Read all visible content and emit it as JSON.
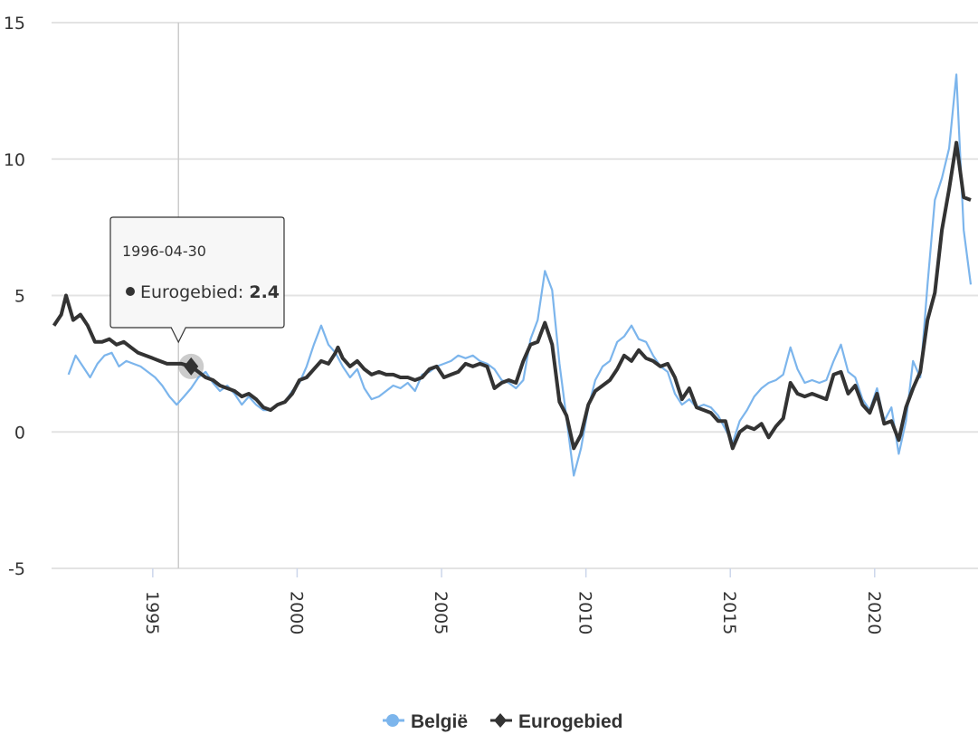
{
  "chart_data": {
    "type": "line",
    "title": "",
    "xlabel": "",
    "ylabel": "",
    "xlim": [
      "1991-07-01",
      "2023-07-31"
    ],
    "ylim": [
      -5,
      15
    ],
    "y_ticks": [
      "-5",
      "0",
      "5",
      "10",
      "15"
    ],
    "x_ticks": [
      "1995",
      "2000",
      "2005",
      "2010",
      "2015",
      "2020"
    ],
    "grid": true,
    "legend": {
      "placement": "bottom-center"
    },
    "series": [
      {
        "name": "België",
        "color": "#7cb5ec",
        "points": [
          [
            "1992-01-31",
            2.1
          ],
          [
            "1992-04-30",
            2.8
          ],
          [
            "1992-07-31",
            2.4
          ],
          [
            "1992-10-31",
            2.0
          ],
          [
            "1993-01-31",
            2.5
          ],
          [
            "1993-04-30",
            2.8
          ],
          [
            "1993-07-31",
            2.9
          ],
          [
            "1993-10-31",
            2.4
          ],
          [
            "1994-01-31",
            2.6
          ],
          [
            "1994-04-30",
            2.5
          ],
          [
            "1994-07-31",
            2.4
          ],
          [
            "1994-10-31",
            2.2
          ],
          [
            "1995-01-31",
            2.0
          ],
          [
            "1995-04-30",
            1.7
          ],
          [
            "1995-07-31",
            1.3
          ],
          [
            "1995-10-31",
            1.0
          ],
          [
            "1996-01-31",
            1.3
          ],
          [
            "1996-04-30",
            1.6
          ],
          [
            "1996-07-31",
            2.0
          ],
          [
            "1996-10-31",
            2.2
          ],
          [
            "1997-01-31",
            1.8
          ],
          [
            "1997-04-30",
            1.5
          ],
          [
            "1997-07-31",
            1.7
          ],
          [
            "1997-10-31",
            1.4
          ],
          [
            "1998-01-31",
            1.0
          ],
          [
            "1998-04-30",
            1.3
          ],
          [
            "1998-07-31",
            1.0
          ],
          [
            "1998-10-31",
            0.8
          ],
          [
            "1999-01-31",
            0.8
          ],
          [
            "1999-04-30",
            1.0
          ],
          [
            "1999-07-31",
            1.1
          ],
          [
            "1999-10-31",
            1.5
          ],
          [
            "2000-01-31",
            1.8
          ],
          [
            "2000-04-30",
            2.4
          ],
          [
            "2000-07-31",
            3.2
          ],
          [
            "2000-10-31",
            3.9
          ],
          [
            "2001-01-31",
            3.2
          ],
          [
            "2001-04-30",
            2.9
          ],
          [
            "2001-07-31",
            2.4
          ],
          [
            "2001-10-31",
            2.0
          ],
          [
            "2002-01-31",
            2.3
          ],
          [
            "2002-04-30",
            1.6
          ],
          [
            "2002-07-31",
            1.2
          ],
          [
            "2002-10-31",
            1.3
          ],
          [
            "2003-01-31",
            1.5
          ],
          [
            "2003-04-30",
            1.7
          ],
          [
            "2003-07-31",
            1.6
          ],
          [
            "2003-10-31",
            1.8
          ],
          [
            "2004-01-31",
            1.5
          ],
          [
            "2004-04-30",
            2.1
          ],
          [
            "2004-07-31",
            2.2
          ],
          [
            "2004-10-31",
            2.4
          ],
          [
            "2005-01-31",
            2.5
          ],
          [
            "2005-04-30",
            2.6
          ],
          [
            "2005-07-31",
            2.8
          ],
          [
            "2005-10-31",
            2.7
          ],
          [
            "2006-01-31",
            2.8
          ],
          [
            "2006-04-30",
            2.6
          ],
          [
            "2006-07-31",
            2.5
          ],
          [
            "2006-10-31",
            2.3
          ],
          [
            "2007-01-31",
            1.9
          ],
          [
            "2007-04-30",
            1.8
          ],
          [
            "2007-07-31",
            1.6
          ],
          [
            "2007-10-31",
            1.9
          ],
          [
            "2008-01-31",
            3.4
          ],
          [
            "2008-04-30",
            4.1
          ],
          [
            "2008-07-31",
            5.9
          ],
          [
            "2008-10-31",
            5.2
          ],
          [
            "2009-01-31",
            2.5
          ],
          [
            "2009-04-30",
            0.5
          ],
          [
            "2009-07-31",
            -1.6
          ],
          [
            "2009-10-31",
            -0.6
          ],
          [
            "2010-01-31",
            0.9
          ],
          [
            "2010-04-30",
            1.9
          ],
          [
            "2010-07-31",
            2.4
          ],
          [
            "2010-10-31",
            2.6
          ],
          [
            "2011-01-31",
            3.3
          ],
          [
            "2011-04-30",
            3.5
          ],
          [
            "2011-07-31",
            3.9
          ],
          [
            "2011-10-31",
            3.4
          ],
          [
            "2012-01-31",
            3.3
          ],
          [
            "2012-04-30",
            2.8
          ],
          [
            "2012-07-31",
            2.4
          ],
          [
            "2012-10-31",
            2.2
          ],
          [
            "2013-01-31",
            1.4
          ],
          [
            "2013-04-30",
            1.0
          ],
          [
            "2013-07-31",
            1.2
          ],
          [
            "2013-10-31",
            0.9
          ],
          [
            "2014-01-31",
            1.0
          ],
          [
            "2014-04-30",
            0.9
          ],
          [
            "2014-07-31",
            0.6
          ],
          [
            "2014-10-31",
            0.1
          ],
          [
            "2015-01-31",
            -0.4
          ],
          [
            "2015-04-30",
            0.4
          ],
          [
            "2015-07-31",
            0.8
          ],
          [
            "2015-10-31",
            1.3
          ],
          [
            "2016-01-31",
            1.6
          ],
          [
            "2016-04-30",
            1.8
          ],
          [
            "2016-07-31",
            1.9
          ],
          [
            "2016-10-31",
            2.1
          ],
          [
            "2017-01-31",
            3.1
          ],
          [
            "2017-04-30",
            2.3
          ],
          [
            "2017-07-31",
            1.8
          ],
          [
            "2017-10-31",
            1.9
          ],
          [
            "2018-01-31",
            1.8
          ],
          [
            "2018-04-30",
            1.9
          ],
          [
            "2018-07-31",
            2.6
          ],
          [
            "2018-10-31",
            3.2
          ],
          [
            "2019-01-31",
            2.2
          ],
          [
            "2019-04-30",
            2.0
          ],
          [
            "2019-07-31",
            1.2
          ],
          [
            "2019-10-31",
            0.8
          ],
          [
            "2020-01-31",
            1.6
          ],
          [
            "2020-04-30",
            0.4
          ],
          [
            "2020-07-31",
            0.9
          ],
          [
            "2020-10-31",
            -0.8
          ],
          [
            "2021-01-31",
            0.4
          ],
          [
            "2021-04-30",
            2.6
          ],
          [
            "2021-07-31",
            2.0
          ],
          [
            "2021-10-31",
            5.4
          ],
          [
            "2022-01-31",
            8.5
          ],
          [
            "2022-04-30",
            9.3
          ],
          [
            "2022-07-31",
            10.4
          ],
          [
            "2022-10-31",
            13.1
          ],
          [
            "2023-01-31",
            7.4
          ],
          [
            "2023-04-30",
            5.4
          ]
        ]
      },
      {
        "name": "Eurogebied",
        "color": "#333333",
        "points": [
          [
            "1991-07-31",
            3.9
          ],
          [
            "1991-10-31",
            4.3
          ],
          [
            "1991-12-31",
            5.0
          ],
          [
            "1992-03-31",
            4.1
          ],
          [
            "1992-06-30",
            4.3
          ],
          [
            "1992-09-30",
            3.9
          ],
          [
            "1992-12-31",
            3.3
          ],
          [
            "1993-03-31",
            3.3
          ],
          [
            "1993-06-30",
            3.4
          ],
          [
            "1993-09-30",
            3.2
          ],
          [
            "1993-12-31",
            3.3
          ],
          [
            "1994-03-31",
            3.1
          ],
          [
            "1994-06-30",
            2.9
          ],
          [
            "1994-09-30",
            2.8
          ],
          [
            "1994-12-31",
            2.7
          ],
          [
            "1995-03-31",
            2.6
          ],
          [
            "1995-06-30",
            2.5
          ],
          [
            "1995-09-30",
            2.5
          ],
          [
            "1995-12-31",
            2.5
          ],
          [
            "1996-04-30",
            2.4
          ],
          [
            "1996-07-31",
            2.2
          ],
          [
            "1996-10-31",
            2.0
          ],
          [
            "1997-01-31",
            1.9
          ],
          [
            "1997-04-30",
            1.7
          ],
          [
            "1997-07-31",
            1.6
          ],
          [
            "1997-10-31",
            1.5
          ],
          [
            "1998-01-31",
            1.3
          ],
          [
            "1998-04-30",
            1.4
          ],
          [
            "1998-07-31",
            1.2
          ],
          [
            "1998-10-31",
            0.9
          ],
          [
            "1999-01-31",
            0.8
          ],
          [
            "1999-04-30",
            1.0
          ],
          [
            "1999-07-31",
            1.1
          ],
          [
            "1999-10-31",
            1.4
          ],
          [
            "2000-01-31",
            1.9
          ],
          [
            "2000-04-30",
            2.0
          ],
          [
            "2000-07-31",
            2.3
          ],
          [
            "2000-10-31",
            2.6
          ],
          [
            "2001-01-31",
            2.5
          ],
          [
            "2001-04-30",
            2.9
          ],
          [
            "2001-05-31",
            3.1
          ],
          [
            "2001-07-31",
            2.7
          ],
          [
            "2001-10-31",
            2.4
          ],
          [
            "2002-01-31",
            2.6
          ],
          [
            "2002-04-30",
            2.3
          ],
          [
            "2002-07-31",
            2.1
          ],
          [
            "2002-10-31",
            2.2
          ],
          [
            "2003-01-31",
            2.1
          ],
          [
            "2003-04-30",
            2.1
          ],
          [
            "2003-07-31",
            2.0
          ],
          [
            "2003-10-31",
            2.0
          ],
          [
            "2004-01-31",
            1.9
          ],
          [
            "2004-04-30",
            2.0
          ],
          [
            "2004-07-31",
            2.3
          ],
          [
            "2004-10-31",
            2.4
          ],
          [
            "2005-01-31",
            2.0
          ],
          [
            "2005-04-30",
            2.1
          ],
          [
            "2005-07-31",
            2.2
          ],
          [
            "2005-10-31",
            2.5
          ],
          [
            "2006-01-31",
            2.4
          ],
          [
            "2006-04-30",
            2.5
          ],
          [
            "2006-07-31",
            2.4
          ],
          [
            "2006-10-31",
            1.6
          ],
          [
            "2007-01-31",
            1.8
          ],
          [
            "2007-04-30",
            1.9
          ],
          [
            "2007-07-31",
            1.8
          ],
          [
            "2007-10-31",
            2.6
          ],
          [
            "2008-01-31",
            3.2
          ],
          [
            "2008-04-30",
            3.3
          ],
          [
            "2008-07-31",
            4.0
          ],
          [
            "2008-10-31",
            3.2
          ],
          [
            "2009-01-31",
            1.1
          ],
          [
            "2009-04-30",
            0.6
          ],
          [
            "2009-07-31",
            -0.6
          ],
          [
            "2009-10-31",
            -0.1
          ],
          [
            "2010-01-31",
            1.0
          ],
          [
            "2010-04-30",
            1.5
          ],
          [
            "2010-07-31",
            1.7
          ],
          [
            "2010-10-31",
            1.9
          ],
          [
            "2011-01-31",
            2.3
          ],
          [
            "2011-04-30",
            2.8
          ],
          [
            "2011-07-31",
            2.6
          ],
          [
            "2011-10-31",
            3.0
          ],
          [
            "2012-01-31",
            2.7
          ],
          [
            "2012-04-30",
            2.6
          ],
          [
            "2012-07-31",
            2.4
          ],
          [
            "2012-10-31",
            2.5
          ],
          [
            "2013-01-31",
            2.0
          ],
          [
            "2013-04-30",
            1.2
          ],
          [
            "2013-07-31",
            1.6
          ],
          [
            "2013-10-31",
            0.9
          ],
          [
            "2014-01-31",
            0.8
          ],
          [
            "2014-04-30",
            0.7
          ],
          [
            "2014-07-31",
            0.4
          ],
          [
            "2014-10-31",
            0.4
          ],
          [
            "2015-01-31",
            -0.6
          ],
          [
            "2015-04-30",
            0.0
          ],
          [
            "2015-07-31",
            0.2
          ],
          [
            "2015-10-31",
            0.1
          ],
          [
            "2016-01-31",
            0.3
          ],
          [
            "2016-04-30",
            -0.2
          ],
          [
            "2016-07-31",
            0.2
          ],
          [
            "2016-10-31",
            0.5
          ],
          [
            "2017-01-31",
            1.8
          ],
          [
            "2017-04-30",
            1.4
          ],
          [
            "2017-07-31",
            1.3
          ],
          [
            "2017-10-31",
            1.4
          ],
          [
            "2018-01-31",
            1.3
          ],
          [
            "2018-04-30",
            1.2
          ],
          [
            "2018-07-31",
            2.1
          ],
          [
            "2018-10-31",
            2.2
          ],
          [
            "2019-01-31",
            1.4
          ],
          [
            "2019-04-30",
            1.7
          ],
          [
            "2019-07-31",
            1.0
          ],
          [
            "2019-10-31",
            0.7
          ],
          [
            "2020-01-31",
            1.4
          ],
          [
            "2020-04-30",
            0.3
          ],
          [
            "2020-07-31",
            0.4
          ],
          [
            "2020-10-31",
            -0.3
          ],
          [
            "2021-01-31",
            0.9
          ],
          [
            "2021-04-30",
            1.6
          ],
          [
            "2021-07-31",
            2.2
          ],
          [
            "2021-10-31",
            4.1
          ],
          [
            "2022-01-31",
            5.1
          ],
          [
            "2022-04-30",
            7.4
          ],
          [
            "2022-07-31",
            8.9
          ],
          [
            "2022-10-31",
            10.6
          ],
          [
            "2023-01-31",
            8.6
          ],
          [
            "2023-04-30",
            8.5
          ]
        ]
      }
    ],
    "tooltip": {
      "date": "1996-04-30",
      "series_name": "Eurogebied",
      "label": "Eurogebied: ",
      "value": "2.4"
    }
  }
}
